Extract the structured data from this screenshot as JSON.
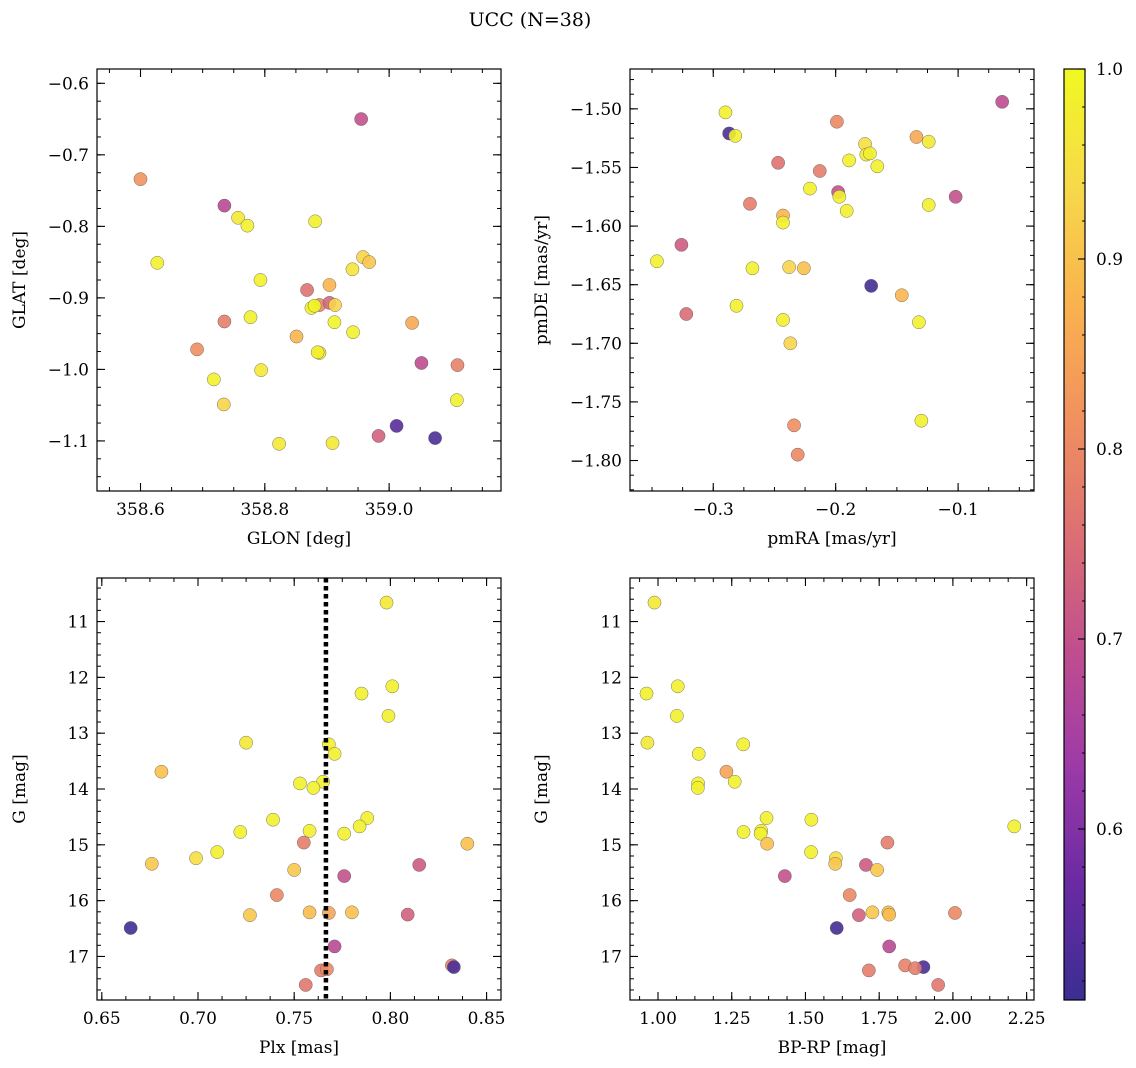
{
  "title": "UCC (N=38)",
  "colorbar": {
    "colormap": "plasma",
    "range": [
      0.51,
      1.0
    ],
    "ticks": [
      0.6,
      0.7,
      0.8,
      0.9,
      1.0
    ],
    "tick_labels": [
      "0.6",
      "0.7",
      "0.8",
      "0.9",
      "1.0"
    ]
  },
  "colors": {
    "point_edge": "#555555",
    "vline": "#000000",
    "colormap_stops": [
      "#3a2e92",
      "#6a2aa2",
      "#9c3aa8",
      "#c04e8e",
      "#dc6f73",
      "#f1915f",
      "#f9b34e",
      "#f7d94a",
      "#f0f921"
    ]
  },
  "chart_data": [
    {
      "type": "scatter",
      "id": "glon-glat",
      "xlabel": "GLON [deg]",
      "ylabel": "GLAT [deg]",
      "xlim": [
        358.53,
        359.18
      ],
      "ylim": [
        -1.17,
        -0.58
      ],
      "y_inverted": false,
      "xticks": [
        358.6,
        358.8,
        359.0
      ],
      "xtick_labels": [
        "358.6",
        "358.8",
        "359.0"
      ],
      "yticks": [
        -0.6,
        -0.7,
        -0.8,
        -0.9,
        -1.0,
        -1.1
      ],
      "ytick_labels": [
        "−0.6",
        "−0.7",
        "−0.8",
        "−0.9",
        "−1.0",
        "−1.1"
      ],
      "x": [
        358.955,
        358.6,
        358.735,
        358.757,
        358.772,
        358.627,
        358.881,
        358.793,
        358.958,
        358.968,
        358.941,
        358.904,
        358.868,
        358.888,
        358.904,
        358.875,
        358.913,
        358.777,
        358.735,
        358.912,
        358.942,
        358.851,
        359.037,
        358.691,
        358.888,
        359.052,
        359.11,
        358.794,
        358.718,
        358.734,
        359.109,
        359.012,
        358.983,
        359.074,
        358.823,
        358.909,
        358.885,
        358.88
      ],
      "y": [
        -0.65,
        -0.734,
        -0.771,
        -0.788,
        -0.799,
        -0.851,
        -0.793,
        -0.875,
        -0.843,
        -0.85,
        -0.86,
        -0.882,
        -0.889,
        -0.91,
        -0.907,
        -0.914,
        -0.91,
        -0.927,
        -0.933,
        -0.934,
        -0.948,
        -0.954,
        -0.935,
        -0.972,
        -0.977,
        -0.991,
        -0.994,
        -1.001,
        -1.014,
        -1.049,
        -1.043,
        -1.079,
        -1.093,
        -1.096,
        -1.104,
        -1.103,
        -0.976,
        -0.911
      ],
      "color": [
        0.7,
        0.82,
        0.68,
        0.97,
        0.98,
        0.98,
        0.98,
        0.98,
        0.93,
        0.91,
        0.96,
        0.88,
        0.76,
        0.8,
        0.74,
        0.98,
        0.93,
        0.98,
        0.78,
        0.99,
        0.98,
        0.88,
        0.86,
        0.81,
        0.97,
        0.69,
        0.79,
        0.97,
        0.98,
        0.93,
        0.98,
        0.55,
        0.73,
        0.53,
        0.97,
        0.97,
        0.98,
        0.99
      ]
    },
    {
      "type": "scatter",
      "id": "pmra-pmde",
      "xlabel": "pmRA [mas/yr]",
      "ylabel": "pmDE [mas/yr]",
      "xlim": [
        -0.368,
        -0.038
      ],
      "ylim": [
        -1.826,
        -1.466
      ],
      "y_inverted": false,
      "xticks": [
        -0.3,
        -0.2,
        -0.1
      ],
      "xtick_labels": [
        "−0.3",
        "−0.2",
        "−0.1"
      ],
      "yticks": [
        -1.5,
        -1.55,
        -1.6,
        -1.65,
        -1.7,
        -1.75,
        -1.8
      ],
      "ytick_labels": [
        "−1.50",
        "−1.55",
        "−1.60",
        "−1.65",
        "−1.70",
        "−1.75",
        "−1.80"
      ],
      "x": [
        -0.064,
        -0.29,
        -0.287,
        -0.282,
        -0.199,
        -0.134,
        -0.124,
        -0.176,
        -0.175,
        -0.247,
        -0.213,
        -0.189,
        -0.166,
        -0.221,
        -0.198,
        -0.197,
        -0.102,
        -0.124,
        -0.191,
        -0.243,
        -0.27,
        -0.243,
        -0.326,
        -0.346,
        -0.238,
        -0.226,
        -0.268,
        -0.171,
        -0.146,
        -0.281,
        -0.243,
        -0.132,
        -0.237,
        -0.322,
        -0.234,
        -0.13,
        -0.231,
        -0.172
      ],
      "y": [
        -1.494,
        -1.503,
        -1.521,
        -1.523,
        -1.511,
        -1.524,
        -1.528,
        -1.53,
        -1.539,
        -1.546,
        -1.553,
        -1.544,
        -1.549,
        -1.568,
        -1.571,
        -1.575,
        -1.575,
        -1.582,
        -1.587,
        -1.591,
        -1.581,
        -1.597,
        -1.616,
        -1.63,
        -1.635,
        -1.636,
        -1.636,
        -1.651,
        -1.659,
        -1.668,
        -1.68,
        -1.682,
        -1.7,
        -1.675,
        -1.77,
        -1.766,
        -1.795,
        -1.538
      ],
      "color": [
        0.69,
        0.98,
        0.53,
        0.98,
        0.8,
        0.86,
        0.97,
        0.95,
        0.97,
        0.76,
        0.78,
        0.98,
        0.98,
        0.98,
        0.7,
        0.98,
        0.7,
        0.98,
        0.98,
        0.88,
        0.78,
        0.98,
        0.72,
        0.98,
        0.93,
        0.9,
        0.98,
        0.52,
        0.88,
        0.98,
        0.98,
        0.98,
        0.93,
        0.75,
        0.81,
        0.98,
        0.8,
        0.98
      ]
    },
    {
      "type": "scatter",
      "id": "plx-g",
      "xlabel": "Plx [mas]",
      "ylabel": "G [mag]",
      "xlim": [
        0.6475,
        0.8575
      ],
      "ylim": [
        17.78,
        10.22
      ],
      "y_inverted": true,
      "xticks": [
        0.65,
        0.7,
        0.75,
        0.8,
        0.85
      ],
      "xtick_labels": [
        "0.65",
        "0.70",
        "0.75",
        "0.80",
        "0.85"
      ],
      "yticks": [
        11,
        12,
        13,
        14,
        15,
        16,
        17
      ],
      "ytick_labels": [
        "11",
        "12",
        "13",
        "14",
        "15",
        "16",
        "17"
      ],
      "vline": 0.7665,
      "x": [
        0.798,
        0.801,
        0.785,
        0.799,
        0.725,
        0.768,
        0.771,
        0.681,
        0.753,
        0.765,
        0.76,
        0.788,
        0.739,
        0.784,
        0.776,
        0.758,
        0.722,
        0.84,
        0.755,
        0.71,
        0.699,
        0.676,
        0.75,
        0.815,
        0.776,
        0.741,
        0.727,
        0.758,
        0.78,
        0.768,
        0.809,
        0.665,
        0.771,
        0.832,
        0.833,
        0.764,
        0.767,
        0.756
      ],
      "y": [
        10.66,
        12.16,
        12.29,
        12.69,
        13.17,
        13.2,
        13.37,
        13.69,
        13.9,
        13.87,
        13.98,
        14.52,
        14.55,
        14.67,
        14.8,
        14.75,
        14.77,
        14.98,
        14.96,
        15.13,
        15.24,
        15.34,
        15.45,
        15.36,
        15.56,
        15.9,
        16.26,
        16.21,
        16.21,
        16.22,
        16.25,
        16.49,
        16.82,
        17.16,
        17.19,
        17.25,
        17.23,
        17.51
      ],
      "color": [
        0.97,
        0.98,
        0.98,
        0.98,
        0.97,
        0.98,
        0.98,
        0.9,
        0.98,
        0.98,
        0.98,
        0.98,
        0.98,
        0.98,
        0.98,
        0.98,
        0.98,
        0.9,
        0.78,
        0.98,
        0.95,
        0.91,
        0.91,
        0.72,
        0.7,
        0.8,
        0.91,
        0.89,
        0.9,
        0.85,
        0.73,
        0.52,
        0.68,
        0.79,
        0.53,
        0.78,
        0.8,
        0.77
      ]
    },
    {
      "type": "scatter",
      "id": "bprp-g",
      "xlabel": "BP-RP [mag]",
      "ylabel": "G [mag]",
      "xlim": [
        0.905,
        2.275
      ],
      "ylim": [
        17.78,
        10.22
      ],
      "y_inverted": true,
      "xticks": [
        1.0,
        1.25,
        1.5,
        1.75,
        2.0,
        2.25
      ],
      "xtick_labels": [
        "1.00",
        "1.25",
        "1.50",
        "1.75",
        "2.00",
        "2.25"
      ],
      "yticks": [
        11,
        12,
        13,
        14,
        15,
        16,
        17
      ],
      "ytick_labels": [
        "11",
        "12",
        "13",
        "14",
        "15",
        "16",
        "17"
      ],
      "x": [
        0.988,
        1.067,
        0.961,
        1.064,
        0.964,
        1.289,
        1.138,
        1.232,
        1.26,
        1.136,
        1.135,
        1.368,
        1.52,
        1.35,
        2.208,
        1.29,
        1.348,
        1.37,
        1.778,
        1.519,
        1.603,
        1.601,
        1.705,
        1.743,
        1.43,
        1.65,
        1.727,
        1.781,
        1.784,
        1.681,
        2.007,
        1.606,
        1.784,
        1.838,
        1.9,
        1.715,
        1.872,
        1.95
      ],
      "y": [
        10.66,
        12.16,
        12.29,
        12.69,
        13.17,
        13.2,
        13.37,
        13.69,
        13.87,
        13.9,
        13.98,
        14.52,
        14.55,
        14.75,
        14.67,
        14.77,
        14.8,
        14.98,
        14.96,
        15.13,
        15.24,
        15.34,
        15.36,
        15.45,
        15.56,
        15.9,
        16.21,
        16.21,
        16.25,
        16.26,
        16.22,
        16.49,
        16.82,
        17.16,
        17.19,
        17.25,
        17.21,
        17.51
      ],
      "color": [
        0.97,
        0.98,
        0.98,
        0.98,
        0.97,
        0.98,
        0.98,
        0.85,
        0.98,
        0.98,
        0.98,
        0.98,
        0.98,
        0.98,
        0.98,
        0.98,
        0.98,
        0.9,
        0.78,
        0.98,
        0.95,
        0.91,
        0.72,
        0.91,
        0.7,
        0.8,
        0.91,
        0.9,
        0.89,
        0.73,
        0.8,
        0.52,
        0.68,
        0.79,
        0.53,
        0.78,
        0.78,
        0.77
      ]
    }
  ]
}
